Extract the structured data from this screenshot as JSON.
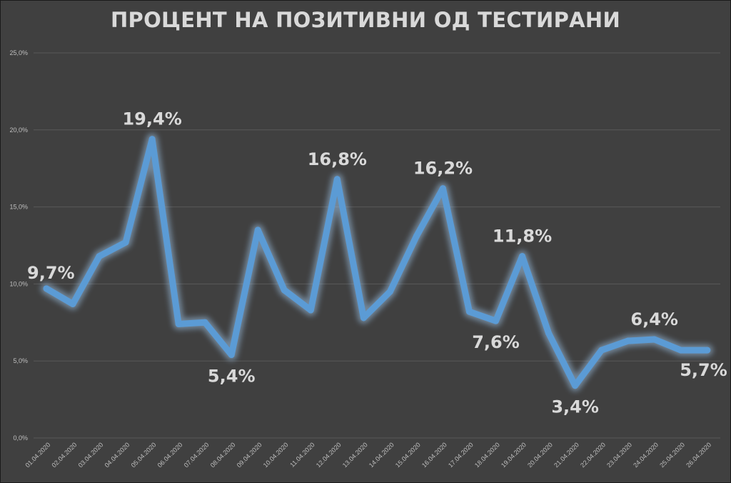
{
  "chart_data": {
    "type": "line",
    "title": "ПРОЦЕНТ НА ПОЗИТИВНИ ОД ТЕСТИРАНИ",
    "xlabel": "",
    "ylabel": "",
    "ylim": [
      0,
      25
    ],
    "yticks": [
      "0,0%",
      "5,0%",
      "10,0%",
      "15,0%",
      "20,0%",
      "25,0%"
    ],
    "categories": [
      "01.04.2020",
      "02.04.2020",
      "03.04.2020",
      "04.04.2020",
      "05.04.2020",
      "06.04.2020",
      "07.04.2020",
      "08.04.2020",
      "09.04.2020",
      "10.04.2020",
      "11.04.2020",
      "12.04.2020",
      "13.04.2020",
      "14.04.2020",
      "15.04.2020",
      "16.04.2020",
      "17.04.2020",
      "18.04.2020",
      "19.04.2020",
      "20.04.2020",
      "21.04.2020",
      "22.04.2020",
      "23.04.2020",
      "24.04.2020",
      "25.04.2020",
      "26.04.2020"
    ],
    "series": [
      {
        "values": [
          9.7,
          8.7,
          11.8,
          12.7,
          19.4,
          7.4,
          7.5,
          5.4,
          13.5,
          9.6,
          8.3,
          16.8,
          7.8,
          9.5,
          13.1,
          16.2,
          8.2,
          7.6,
          11.8,
          6.8,
          3.4,
          5.7,
          6.3,
          6.4,
          5.7,
          5.7
        ]
      }
    ],
    "data_labels": [
      {
        "index": 0,
        "text": "9,7%"
      },
      {
        "index": 4,
        "text": "19,4%"
      },
      {
        "index": 7,
        "text": "5,4%"
      },
      {
        "index": 11,
        "text": "16,8%"
      },
      {
        "index": 15,
        "text": "16,2%"
      },
      {
        "index": 17,
        "text": "7,6%"
      },
      {
        "index": 18,
        "text": "11,8%"
      },
      {
        "index": 20,
        "text": "3,4%"
      },
      {
        "index": 23,
        "text": "6,4%"
      },
      {
        "index": 25,
        "text": "5,7%"
      }
    ],
    "grid": true,
    "legend": "none",
    "colors": {
      "background": "#404040",
      "line": "#5b9bd5",
      "glow": "#9dc3e6",
      "text": "#d9d9d9"
    }
  }
}
